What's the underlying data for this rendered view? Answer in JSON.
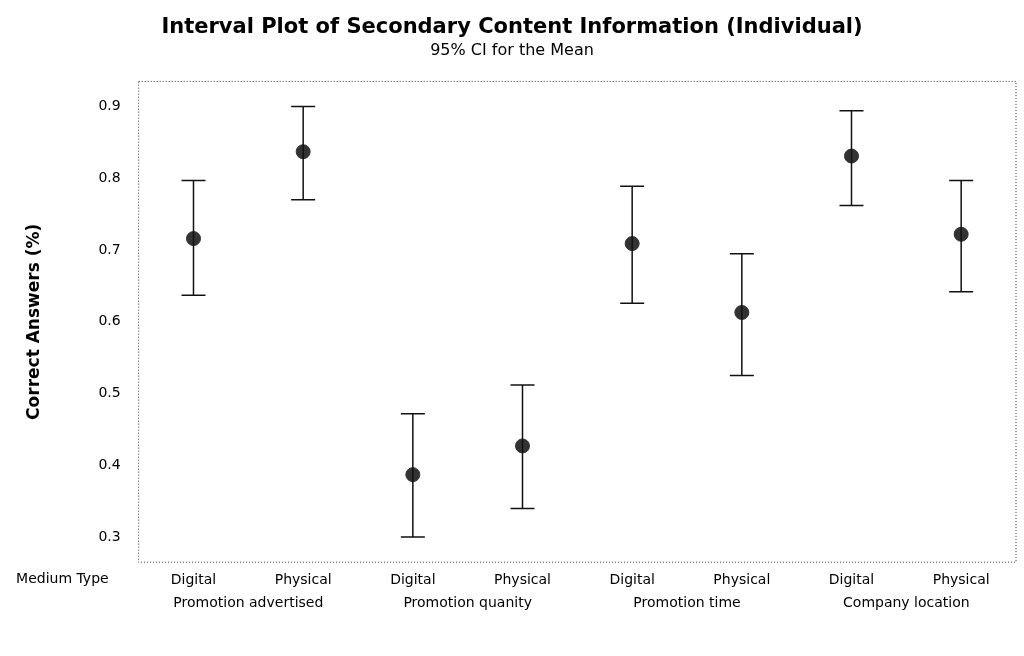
{
  "chart_data": {
    "type": "scatter",
    "title": "Interval Plot of Secondary Content Information (Individual)",
    "subtitle": "95% CI for the Mean",
    "ylabel": "Correct Answers (%)",
    "xlabel": "Medium Type",
    "categories": [
      "Digital",
      "Physical",
      "Digital",
      "Physical",
      "Digital",
      "Physical",
      "Digital",
      "Physical"
    ],
    "values": [
      0.716,
      0.837,
      0.387,
      0.427,
      0.709,
      0.613,
      0.831,
      0.722
    ],
    "errors": [
      [
        0.637,
        0.797
      ],
      [
        0.77,
        0.9
      ],
      [
        0.3,
        0.472
      ],
      [
        0.34,
        0.512
      ],
      [
        0.626,
        0.789
      ],
      [
        0.525,
        0.695
      ],
      [
        0.762,
        0.894
      ],
      [
        0.642,
        0.797
      ]
    ],
    "color": "#333333",
    "marker": "circle",
    "grid": false,
    "legend": false,
    "ylim": [
      0.265,
      0.935
    ],
    "yticks": [
      0.3,
      0.4,
      0.5,
      0.6,
      0.7,
      0.8,
      0.9
    ],
    "annotations": [
      "Promotion advertised",
      "Promotion quanity",
      "Promotion time",
      "Company location"
    ]
  }
}
